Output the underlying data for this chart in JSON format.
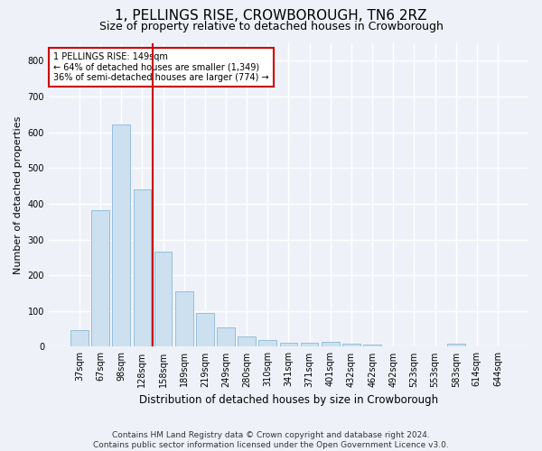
{
  "title": "1, PELLINGS RISE, CROWBOROUGH, TN6 2RZ",
  "subtitle": "Size of property relative to detached houses in Crowborough",
  "xlabel": "Distribution of detached houses by size in Crowborough",
  "ylabel": "Number of detached properties",
  "bar_labels": [
    "37sqm",
    "67sqm",
    "98sqm",
    "128sqm",
    "158sqm",
    "189sqm",
    "219sqm",
    "249sqm",
    "280sqm",
    "310sqm",
    "341sqm",
    "371sqm",
    "401sqm",
    "432sqm",
    "462sqm",
    "492sqm",
    "523sqm",
    "553sqm",
    "583sqm",
    "614sqm",
    "644sqm"
  ],
  "bar_values": [
    47,
    383,
    622,
    440,
    265,
    155,
    95,
    55,
    28,
    18,
    10,
    10,
    14,
    8,
    6,
    0,
    0,
    0,
    8,
    0,
    0
  ],
  "bar_color": "#cce0f0",
  "bar_edge_color": "#8ab8d8",
  "vline_color": "#cc0000",
  "vline_x_index": 3.5,
  "annotation_text": "1 PELLINGS RISE: 149sqm\n← 64% of detached houses are smaller (1,349)\n36% of semi-detached houses are larger (774) →",
  "annotation_box_color": "#ffffff",
  "annotation_box_edge": "#cc0000",
  "ylim": [
    0,
    850
  ],
  "yticks": [
    0,
    100,
    200,
    300,
    400,
    500,
    600,
    700,
    800
  ],
  "footer": "Contains HM Land Registry data © Crown copyright and database right 2024.\nContains public sector information licensed under the Open Government Licence v3.0.",
  "bg_color": "#eef2f8",
  "plot_bg_color": "#eef2f8",
  "grid_color": "#ffffff",
  "title_fontsize": 11,
  "subtitle_fontsize": 9,
  "tick_fontsize": 7,
  "ylabel_fontsize": 8,
  "xlabel_fontsize": 8.5,
  "footer_fontsize": 6.5
}
